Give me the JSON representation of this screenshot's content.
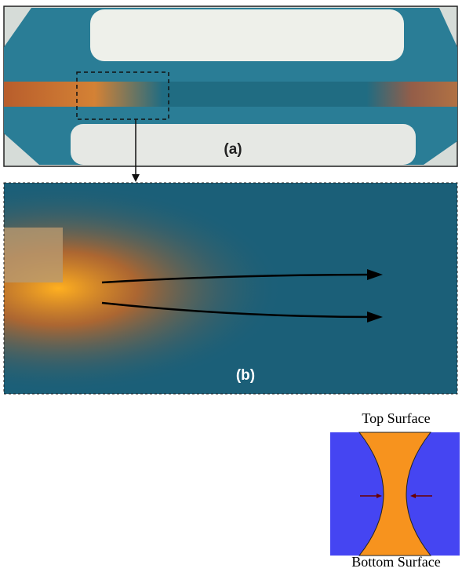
{
  "panels": {
    "a": {
      "label": "(a)"
    },
    "b": {
      "label": "(b)"
    }
  },
  "diagram": {
    "top_label": "Top Surface",
    "bottom_label": "Bottom Surface"
  }
}
